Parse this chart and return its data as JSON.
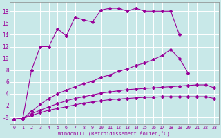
{
  "xlabel": "Windchill (Refroidissement éolien,°C)",
  "background_color": "#c8e8e8",
  "grid_color": "#aacccc",
  "line_color": "#990099",
  "xlim": [
    -0.5,
    23.5
  ],
  "ylim": [
    -1.2,
    19.5
  ],
  "xticks": [
    0,
    1,
    2,
    3,
    4,
    5,
    6,
    7,
    8,
    9,
    10,
    11,
    12,
    13,
    14,
    15,
    16,
    17,
    18,
    19,
    20,
    21,
    22,
    23
  ],
  "yticks": [
    0,
    2,
    4,
    6,
    8,
    10,
    12,
    14,
    16,
    18
  ],
  "ytick_labels": [
    "-0",
    "2",
    "4",
    "6",
    "8",
    "10",
    "12",
    "14",
    "16",
    "18"
  ],
  "line1_x": [
    0,
    1,
    2,
    3,
    4,
    5,
    6,
    7,
    8,
    9,
    10,
    11,
    12,
    13,
    14,
    15,
    16,
    17,
    18,
    19
  ],
  "line1_y": [
    -0.3,
    -0.2,
    8,
    12,
    12,
    15,
    13.8,
    17,
    16.5,
    16.2,
    18.2,
    18.5,
    18.5,
    18,
    18.5,
    18,
    18,
    18,
    18,
    14
  ],
  "line2_x": [
    0,
    1,
    2,
    3,
    4,
    5,
    6,
    7,
    8,
    9,
    10,
    11,
    12,
    13,
    14,
    15,
    16,
    17,
    18,
    19,
    20,
    21,
    22,
    23
  ],
  "line2_y": [
    -0.3,
    -0.2,
    1.0,
    2.2,
    3.2,
    4.0,
    4.6,
    5.2,
    5.7,
    6.1,
    6.8,
    7.2,
    7.8,
    8.2,
    8.8,
    9.2,
    9.8,
    10.5,
    11.5,
    10.0,
    7.5,
    null,
    null,
    null
  ],
  "line3_x": [
    0,
    1,
    2,
    3,
    4,
    5,
    6,
    7,
    8,
    9,
    10,
    11,
    12,
    13,
    14,
    15,
    16,
    17,
    18,
    19,
    20,
    21,
    22,
    23
  ],
  "line3_y": [
    -0.3,
    -0.2,
    0.6,
    1.2,
    1.8,
    2.3,
    2.8,
    3.2,
    3.5,
    3.8,
    4.1,
    4.3,
    4.5,
    4.7,
    4.8,
    4.9,
    5.0,
    5.1,
    5.2,
    5.3,
    5.4,
    5.5,
    5.5,
    5.0
  ],
  "line4_x": [
    0,
    1,
    2,
    3,
    4,
    5,
    6,
    7,
    8,
    9,
    10,
    11,
    12,
    13,
    14,
    15,
    16,
    17,
    18,
    19,
    20,
    21,
    22,
    23
  ],
  "line4_y": [
    -0.3,
    -0.2,
    0.3,
    0.8,
    1.2,
    1.5,
    1.8,
    2.1,
    2.4,
    2.6,
    2.8,
    3.0,
    3.1,
    3.2,
    3.3,
    3.4,
    3.4,
    3.5,
    3.5,
    3.5,
    3.5,
    3.5,
    3.5,
    3.2
  ]
}
